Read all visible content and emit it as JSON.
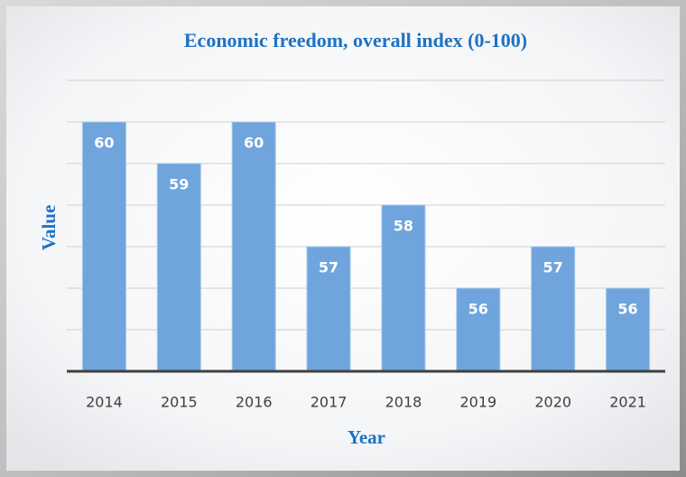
{
  "chart_data": {
    "type": "bar",
    "title": "Economic freedom, overall index (0-100)",
    "x_label": "Year",
    "y_label": "Value",
    "categories": [
      "2014",
      "2015",
      "2016",
      "2017",
      "2018",
      "2019",
      "2020",
      "2021"
    ],
    "values": [
      60,
      59,
      60,
      57,
      58,
      56,
      57,
      56
    ],
    "color": "#6fa5dc",
    "ylim": [
      54,
      61
    ],
    "yticks": [
      55,
      56,
      57,
      58,
      59,
      60,
      61
    ],
    "grid": true
  }
}
